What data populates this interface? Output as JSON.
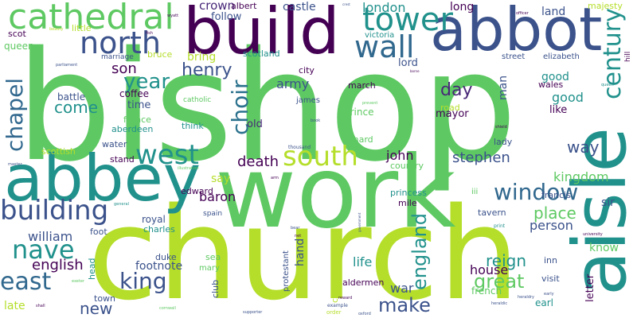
{
  "words": [
    {
      "text": "bishop",
      "color": "#5ec962"
    },
    {
      "text": "church",
      "color": "#b5de2b"
    },
    {
      "text": "work",
      "color": "#5ec962"
    },
    {
      "text": "abbot",
      "color": "#3b528b"
    },
    {
      "text": "build",
      "color": "#440154"
    },
    {
      "text": "abbey",
      "color": "#21918c"
    },
    {
      "text": "aisle",
      "color": "#21918c"
    },
    {
      "text": "cathedral",
      "color": "#5ec962"
    },
    {
      "text": "north",
      "color": "#3b528b"
    },
    {
      "text": "tower",
      "color": "#21918c"
    },
    {
      "text": "wall",
      "color": "#31688e"
    },
    {
      "text": "century",
      "color": "#21918c"
    },
    {
      "text": "west",
      "color": "#21918c"
    },
    {
      "text": "south",
      "color": "#b5de2b"
    },
    {
      "text": "building",
      "color": "#3b528b"
    },
    {
      "text": "nave",
      "color": "#21918c"
    },
    {
      "text": "east",
      "color": "#31688e"
    },
    {
      "text": "choir",
      "color": "#2c728e"
    },
    {
      "text": "chapel",
      "color": "#31688e"
    },
    {
      "text": "window",
      "color": "#31688e"
    },
    {
      "text": "year",
      "color": "#21918c"
    },
    {
      "text": "henry",
      "color": "#3b528b"
    },
    {
      "text": "king",
      "color": "#3b528b"
    },
    {
      "text": "england",
      "color": "#21918c"
    },
    {
      "text": "make",
      "color": "#3b528b"
    },
    {
      "text": "great",
      "color": "#5ec962"
    },
    {
      "text": "reign",
      "color": "#21918c"
    },
    {
      "text": "place",
      "color": "#5ec962"
    },
    {
      "text": "come",
      "color": "#21918c"
    },
    {
      "text": "day",
      "color": "#482878"
    },
    {
      "text": "death",
      "color": "#440154"
    },
    {
      "text": "stephen",
      "color": "#3b528b"
    },
    {
      "text": "kingdom",
      "color": "#5ec962"
    },
    {
      "text": "way",
      "color": "#3b528b"
    },
    {
      "text": "son",
      "color": "#440154"
    },
    {
      "text": "new",
      "color": "#3b528b"
    },
    {
      "text": "english",
      "color": "#440154"
    },
    {
      "text": "william",
      "color": "#3b528b"
    },
    {
      "text": "house",
      "color": "#440154"
    },
    {
      "text": "good",
      "color": "#21918c"
    },
    {
      "text": "army",
      "color": "#3b528b"
    },
    {
      "text": "london",
      "color": "#21918c"
    },
    {
      "text": "crown",
      "color": "#482878"
    },
    {
      "text": "castle",
      "color": "#3b528b"
    },
    {
      "text": "long",
      "color": "#440154"
    },
    {
      "text": "land",
      "color": "#3b528b"
    },
    {
      "text": "good",
      "color": "#21918c"
    },
    {
      "text": "person",
      "color": "#3b528b"
    },
    {
      "text": "baron",
      "color": "#440154"
    },
    {
      "text": "life",
      "color": "#21918c"
    },
    {
      "text": "war",
      "color": "#3b528b"
    },
    {
      "text": "john",
      "color": "#440154"
    },
    {
      "text": "sir",
      "color": "#3b528b"
    },
    {
      "text": "know",
      "color": "#5ec962"
    },
    {
      "text": "footnote",
      "color": "#3b528b"
    },
    {
      "text": "man",
      "color": "#3b528b"
    },
    {
      "text": "letter",
      "color": "#440154"
    },
    {
      "text": "mayor",
      "color": "#440154"
    },
    {
      "text": "like",
      "color": "#440154"
    },
    {
      "text": "old",
      "color": "#482878"
    },
    {
      "text": "time",
      "color": "#3b528b"
    },
    {
      "text": "say",
      "color": "#b5de2b"
    },
    {
      "text": "follow",
      "color": "#3b528b"
    },
    {
      "text": "bring",
      "color": "#b5de2b"
    },
    {
      "text": "lord",
      "color": "#3b528b"
    },
    {
      "text": "majesty",
      "color": "#b5de2b"
    },
    {
      "text": "queen",
      "color": "#5ec962"
    },
    {
      "text": "scot",
      "color": "#440154"
    },
    {
      "text": "little",
      "color": "#b5de2b"
    },
    {
      "text": "albert",
      "color": "#440154"
    },
    {
      "text": "scotland",
      "color": "#21918c"
    },
    {
      "text": "victoria",
      "color": "#21918c"
    },
    {
      "text": "battle",
      "color": "#3b528b"
    },
    {
      "text": "coffee",
      "color": "#440154"
    },
    {
      "text": "france",
      "color": "#5ec962"
    },
    {
      "text": "aberdeen",
      "color": "#21918c"
    },
    {
      "text": "scottish",
      "color": "#b5de2b"
    },
    {
      "text": "water",
      "color": "#3b528b"
    },
    {
      "text": "stand",
      "color": "#440154"
    },
    {
      "text": "think",
      "color": "#21918c"
    },
    {
      "text": "edward",
      "color": "#440154"
    },
    {
      "text": "royal",
      "color": "#3b528b"
    },
    {
      "text": "charles",
      "color": "#21918c"
    },
    {
      "text": "foot",
      "color": "#3b528b"
    },
    {
      "text": "duke",
      "color": "#3b528b"
    },
    {
      "text": "mary",
      "color": "#5ec962"
    },
    {
      "text": "sea",
      "color": "#5ec962"
    },
    {
      "text": "club",
      "color": "#3b528b"
    },
    {
      "text": "town",
      "color": "#3b528b"
    },
    {
      "text": "late",
      "color": "#b5de2b"
    },
    {
      "text": "head",
      "color": "#21918c"
    },
    {
      "text": "hand",
      "color": "#3b528b"
    },
    {
      "text": "citizen",
      "color": "#b5de2b"
    },
    {
      "text": "protestant",
      "color": "#3b528b"
    },
    {
      "text": "aldermen",
      "color": "#440154"
    },
    {
      "text": "french",
      "color": "#5ec962"
    },
    {
      "text": "inn",
      "color": "#3b528b"
    },
    {
      "text": "visit",
      "color": "#3b528b"
    },
    {
      "text": "earl",
      "color": "#21918c"
    },
    {
      "text": "prince",
      "color": "#5ec962"
    },
    {
      "text": "march",
      "color": "#440154"
    },
    {
      "text": "city",
      "color": "#440154"
    },
    {
      "text": "james",
      "color": "#3b528b"
    },
    {
      "text": "richard",
      "color": "#5ec962"
    },
    {
      "text": "country",
      "color": "#5ec962"
    },
    {
      "text": "princess",
      "color": "#21918c"
    },
    {
      "text": "mile",
      "color": "#440154"
    },
    {
      "text": "tavern",
      "color": "#3b528b"
    },
    {
      "text": "francis",
      "color": "#3b528b"
    },
    {
      "text": "lady",
      "color": "#3b528b"
    },
    {
      "text": "wales",
      "color": "#440154"
    },
    {
      "text": "street",
      "color": "#3b528b"
    },
    {
      "text": "elizabeth",
      "color": "#3b528b"
    },
    {
      "text": "marriage",
      "color": "#3b528b"
    },
    {
      "text": "bruce",
      "color": "#b5de2b"
    },
    {
      "text": "catholic",
      "color": "#5ec962"
    },
    {
      "text": "road",
      "color": "#b5de2b"
    },
    {
      "text": "spain",
      "color": "#3b528b"
    },
    {
      "text": "hill",
      "color": "#440154"
    },
    {
      "text": "iii",
      "color": "#5ec962"
    },
    {
      "text": "thousand",
      "color": "#3b528b"
    },
    {
      "text": "parliament",
      "color": "#3b528b"
    },
    {
      "text": "example",
      "color": "#3b528b"
    },
    {
      "text": "supporter",
      "color": "#3b528b"
    },
    {
      "text": "cornwall",
      "color": "#5ec962"
    },
    {
      "text": "shall",
      "color": "#440154"
    },
    {
      "text": "exeter",
      "color": "#5ec962"
    },
    {
      "text": "oxford",
      "color": "#3b528b"
    },
    {
      "text": "order",
      "color": "#b5de2b"
    },
    {
      "text": "heraldic",
      "color": "#3b528b"
    },
    {
      "text": "heraldry",
      "color": "#3b528b"
    },
    {
      "text": "university",
      "color": "#440154"
    },
    {
      "text": "shield",
      "color": "#440154"
    },
    {
      "text": "officer",
      "color": "#440154"
    },
    {
      "text": "illustration",
      "color": "#5ec962"
    },
    {
      "text": "government",
      "color": "#3b528b"
    },
    {
      "text": "print",
      "color": "#21918c"
    },
    {
      "text": "fish",
      "color": "#440154"
    },
    {
      "text": "wyatt",
      "color": "#440154"
    },
    {
      "text": "crest",
      "color": "#3b528b"
    },
    {
      "text": "beauty",
      "color": "#b5de2b"
    },
    {
      "text": "general",
      "color": "#21918c"
    },
    {
      "text": "master",
      "color": "#3b528b"
    },
    {
      "text": "book",
      "color": "#3b528b"
    },
    {
      "text": "borne",
      "color": "#440154"
    },
    {
      "text": "arm",
      "color": "#440154"
    },
    {
      "text": "net",
      "color": "#440154"
    },
    {
      "text": "bear",
      "color": "#3b528b"
    },
    {
      "text": "queen",
      "color": "#21918c"
    },
    {
      "text": "prevent",
      "color": "#5ec962"
    },
    {
      "text": "early",
      "color": "#3b528b"
    },
    {
      "text": "reward",
      "color": "#440154"
    }
  ]
}
